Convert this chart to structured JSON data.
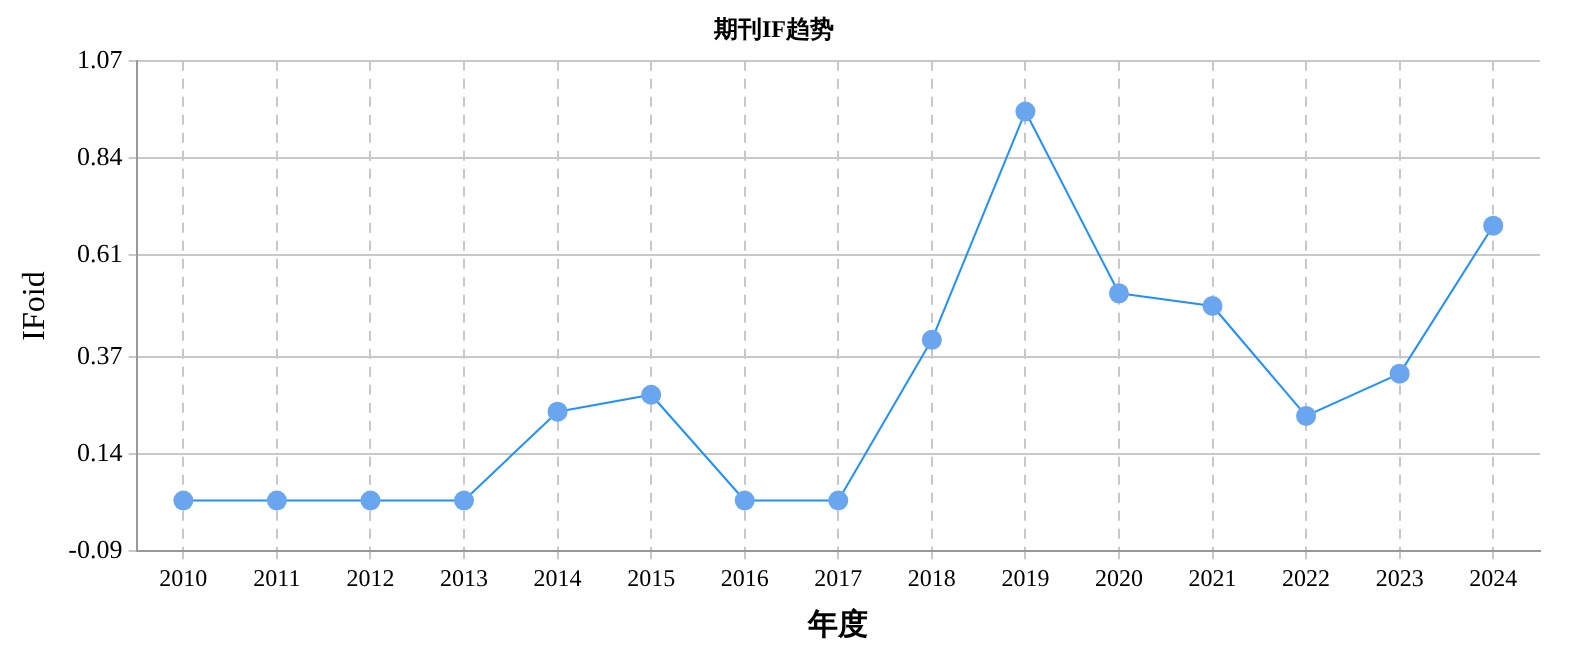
{
  "chart_data": {
    "type": "line",
    "title": "期刊IF趋势",
    "xlabel": "年度",
    "ylabel": "IFoid",
    "categories": [
      "2010",
      "2011",
      "2012",
      "2013",
      "2014",
      "2015",
      "2016",
      "2017",
      "2018",
      "2019",
      "2020",
      "2021",
      "2022",
      "2023",
      "2024"
    ],
    "series": [
      {
        "color": "#1e90ff",
        "values": [
          0.03,
          0.03,
          0.03,
          0.03,
          0.24,
          0.28,
          0.03,
          0.03,
          0.41,
          0.95,
          0.52,
          0.49,
          0.23,
          0.33,
          0.68
        ]
      }
    ],
    "ylim": [
      -0.09,
      1.07
    ],
    "yticks": [
      -0.09,
      0.14,
      0.37,
      0.61,
      0.84,
      1.07
    ],
    "grid": true,
    "legend": false,
    "marker": "circle",
    "line_style": "solid"
  }
}
